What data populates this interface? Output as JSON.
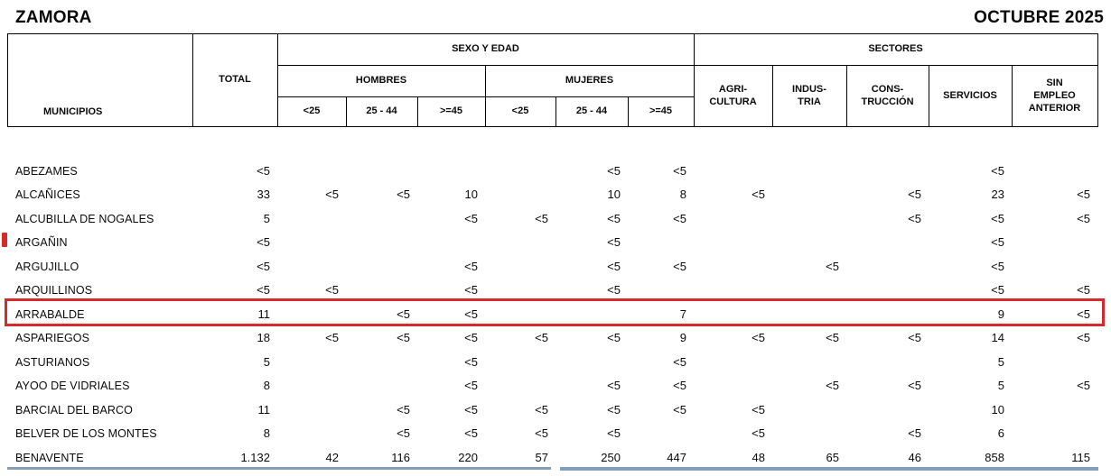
{
  "header": {
    "province": "ZAMORA",
    "period": "OCTUBRE 2025"
  },
  "table": {
    "municipios": "MUNICIPIOS",
    "total": "TOTAL",
    "group_sexo_edad": "SEXO Y EDAD",
    "group_sectores": "SECTORES",
    "group_hombres": "HOMBRES",
    "group_mujeres": "MUJERES",
    "age_lt25_h": "<25",
    "age_25_44_h": "25 - 44",
    "age_ge45_h": ">=45",
    "age_lt25_m": "<25",
    "age_25_44_m": "25 - 44",
    "age_ge45_m": ">=45",
    "sector_agricultura": "AGRI-\nCULTURA",
    "sector_industria": "INDUS-\nTRIA",
    "sector_construccion": "CONS-\nTRUCCIÓN",
    "sector_servicios": "SERVICIOS",
    "sector_sin_empleo": "SIN\nEMPLEO\nANTERIOR"
  },
  "rows": [
    [
      "ABEZAMES",
      "<5",
      "",
      "",
      "",
      "",
      "<5",
      "<5",
      "",
      "",
      "",
      "<5",
      ""
    ],
    [
      "ALCAÑICES",
      "33",
      "<5",
      "<5",
      "10",
      "",
      "10",
      "8",
      "<5",
      "",
      "<5",
      "23",
      "<5"
    ],
    [
      "ALCUBILLA DE NOGALES",
      "5",
      "",
      "",
      "<5",
      "<5",
      "<5",
      "<5",
      "",
      "",
      "<5",
      "<5",
      "<5"
    ],
    [
      "ARGAÑIN",
      "<5",
      "",
      "",
      "",
      "",
      "<5",
      "",
      "",
      "",
      "",
      "<5",
      ""
    ],
    [
      "ARGUJILLO",
      "<5",
      "",
      "",
      "<5",
      "",
      "<5",
      "<5",
      "",
      "<5",
      "",
      "<5",
      ""
    ],
    [
      "ARQUILLINOS",
      "<5",
      "<5",
      "",
      "<5",
      "",
      "<5",
      "",
      "",
      "",
      "",
      "<5",
      "<5"
    ],
    [
      "ARRABALDE",
      "11",
      "",
      "<5",
      "<5",
      "",
      "",
      "7",
      "",
      "",
      "",
      "9",
      "<5"
    ],
    [
      "ASPARIEGOS",
      "18",
      "<5",
      "<5",
      "<5",
      "<5",
      "<5",
      "9",
      "<5",
      "<5",
      "<5",
      "14",
      "<5"
    ],
    [
      "ASTURIANOS",
      "5",
      "",
      "",
      "<5",
      "",
      "",
      "<5",
      "",
      "",
      "",
      "5",
      ""
    ],
    [
      "AYOO DE VIDRIALES",
      "8",
      "",
      "",
      "<5",
      "",
      "<5",
      "<5",
      "",
      "<5",
      "<5",
      "5",
      "<5"
    ],
    [
      "BARCIAL DEL BARCO",
      "11",
      "",
      "<5",
      "<5",
      "<5",
      "<5",
      "<5",
      "<5",
      "",
      "",
      "10",
      ""
    ],
    [
      "BELVER DE LOS MONTES",
      "8",
      "",
      "<5",
      "<5",
      "<5",
      "<5",
      "",
      "<5",
      "",
      "<5",
      "6",
      ""
    ],
    [
      "BENAVENTE",
      "1.132",
      "42",
      "116",
      "220",
      "57",
      "250",
      "447",
      "48",
      "65",
      "46",
      "858",
      "115"
    ]
  ],
  "highlight": {
    "highlighted_row": "ARRABALDE"
  },
  "colors": {
    "highlight_red": "#d42a2a",
    "footer_blue": "#82a0bc",
    "grid_black": "#000000"
  }
}
